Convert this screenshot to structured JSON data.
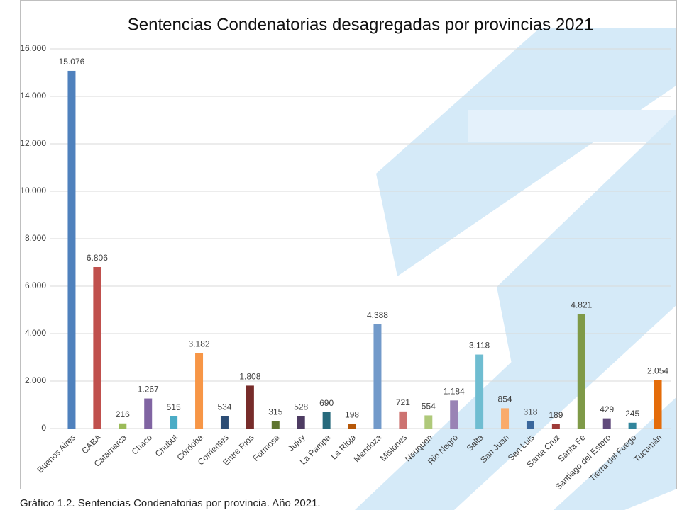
{
  "chart_data": {
    "type": "bar",
    "title": "Sentencias Condenatorias desagregadas por provincias 2021",
    "caption": "Gráfico 1.2. Sentencias Condenatorias por provincia. Año 2021.",
    "categories": [
      "Buenos Aires",
      "CABA",
      "Catamarca",
      "Chaco",
      "Chubut",
      "Córdoba",
      "Corrientes",
      "Entre Rios",
      "Formosa",
      "Jujuy",
      "La Pampa",
      "La Rioja",
      "Mendoza",
      "Misiones",
      "Neuquén",
      "Rio Negro",
      "Salta",
      "San Juan",
      "San Luis",
      "Santa Cruz",
      "Santa Fe",
      "Santiago del Estero",
      "Tierra del Fuego",
      "Tucumán"
    ],
    "values": [
      15076,
      6806,
      216,
      1267,
      515,
      3182,
      534,
      1808,
      315,
      528,
      690,
      198,
      4388,
      721,
      554,
      1184,
      3118,
      854,
      318,
      189,
      4821,
      429,
      245,
      2054
    ],
    "value_labels": [
      "15.076",
      "6.806",
      "216",
      "1.267",
      "515",
      "3.182",
      "534",
      "1.808",
      "315",
      "528",
      "690",
      "198",
      "4.388",
      "721",
      "554",
      "1.184",
      "3.118",
      "854",
      "318",
      "189",
      "4.821",
      "429",
      "245",
      "2.054"
    ],
    "colors": [
      "#4f81bd",
      "#c0504d",
      "#9bbb59",
      "#8064a2",
      "#4bacc6",
      "#f79646",
      "#2c4d75",
      "#772c2a",
      "#5f7530",
      "#4d3b62",
      "#276a7c",
      "#b65708",
      "#729aca",
      "#cd7371",
      "#afc97a",
      "#9983b5",
      "#6fbdd1",
      "#f9ab6b",
      "#3a679c",
      "#9f3b38",
      "#7f9a48",
      "#604a7b",
      "#31859c",
      "#e46c0a"
    ],
    "ylim": [
      0,
      16000
    ],
    "yticks": [
      0,
      {
        "value": 2000,
        "label": "2.000"
      },
      {
        "value": 4000,
        "label": "4.000"
      },
      {
        "value": 6000,
        "label": "6.000"
      },
      {
        "value": 8000,
        "label": "8.000"
      },
      {
        "value": 10000,
        "label": "10.000"
      },
      {
        "value": 12000,
        "label": "12.000"
      },
      {
        "value": 14000,
        "label": "14.000"
      },
      {
        "value": 16000,
        "label": "16.000"
      }
    ],
    "grid": true
  }
}
